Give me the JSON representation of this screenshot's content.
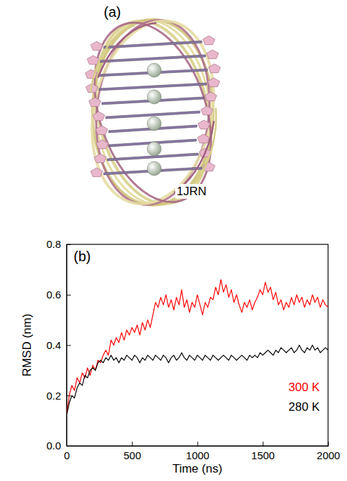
{
  "image_panel": {
    "panel_label": "(a)",
    "structure_label": "1JRN"
  },
  "chart_data": {
    "type": "line",
    "panel_label": "(b)",
    "x_label": "Time (ns)",
    "y_label": "RMSD (nm)",
    "xlim": [
      0,
      2000
    ],
    "ylim": [
      0,
      0.8
    ],
    "xticks": [
      0,
      500,
      1000,
      1500,
      2000
    ],
    "yticks": [
      {
        "value": 0,
        "label": "0.0"
      },
      {
        "value": 0.2,
        "label": "0.2"
      },
      {
        "value": 0.4,
        "label": "0.4"
      },
      {
        "value": 0.6,
        "label": "0.6"
      },
      {
        "value": 0.8,
        "label": "0.8"
      }
    ],
    "legend": "lower right",
    "x": [
      0,
      20,
      40,
      60,
      80,
      100,
      120,
      140,
      160,
      180,
      200,
      220,
      240,
      260,
      280,
      300,
      320,
      340,
      360,
      380,
      400,
      420,
      440,
      460,
      480,
      500,
      520,
      540,
      560,
      580,
      600,
      620,
      640,
      660,
      680,
      700,
      720,
      740,
      760,
      780,
      800,
      820,
      840,
      860,
      880,
      900,
      920,
      940,
      960,
      980,
      1000,
      1020,
      1040,
      1060,
      1080,
      1100,
      1120,
      1140,
      1160,
      1180,
      1200,
      1220,
      1240,
      1260,
      1280,
      1300,
      1320,
      1340,
      1360,
      1380,
      1400,
      1420,
      1440,
      1460,
      1480,
      1500,
      1520,
      1540,
      1560,
      1580,
      1600,
      1620,
      1640,
      1660,
      1680,
      1700,
      1720,
      1740,
      1760,
      1780,
      1800,
      1820,
      1840,
      1860,
      1880,
      1900,
      1920,
      1940,
      1960,
      1980,
      2000
    ],
    "series": [
      {
        "name": "300 K",
        "color": "#ff0000",
        "values": [
          0.12,
          0.2,
          0.24,
          0.22,
          0.27,
          0.25,
          0.29,
          0.27,
          0.31,
          0.28,
          0.32,
          0.3,
          0.34,
          0.33,
          0.36,
          0.38,
          0.36,
          0.42,
          0.4,
          0.43,
          0.41,
          0.45,
          0.42,
          0.46,
          0.44,
          0.47,
          0.45,
          0.48,
          0.44,
          0.49,
          0.46,
          0.5,
          0.47,
          0.52,
          0.57,
          0.55,
          0.59,
          0.56,
          0.6,
          0.55,
          0.58,
          0.54,
          0.59,
          0.56,
          0.62,
          0.55,
          0.58,
          0.53,
          0.57,
          0.55,
          0.6,
          0.56,
          0.52,
          0.57,
          0.55,
          0.59,
          0.58,
          0.63,
          0.6,
          0.66,
          0.61,
          0.64,
          0.59,
          0.62,
          0.57,
          0.6,
          0.56,
          0.53,
          0.57,
          0.55,
          0.58,
          0.54,
          0.57,
          0.59,
          0.62,
          0.6,
          0.65,
          0.61,
          0.63,
          0.58,
          0.61,
          0.56,
          0.58,
          0.54,
          0.57,
          0.55,
          0.59,
          0.56,
          0.6,
          0.57,
          0.59,
          0.55,
          0.58,
          0.56,
          0.6,
          0.57,
          0.59,
          0.55,
          0.58,
          0.56,
          0.55
        ]
      },
      {
        "name": "280 K",
        "color": "#000000",
        "values": [
          0.12,
          0.17,
          0.2,
          0.19,
          0.23,
          0.25,
          0.24,
          0.28,
          0.27,
          0.3,
          0.31,
          0.3,
          0.33,
          0.34,
          0.33,
          0.35,
          0.34,
          0.36,
          0.34,
          0.35,
          0.33,
          0.35,
          0.34,
          0.36,
          0.35,
          0.34,
          0.36,
          0.35,
          0.33,
          0.35,
          0.34,
          0.36,
          0.35,
          0.34,
          0.36,
          0.35,
          0.34,
          0.36,
          0.35,
          0.33,
          0.35,
          0.36,
          0.34,
          0.35,
          0.37,
          0.35,
          0.34,
          0.36,
          0.35,
          0.34,
          0.36,
          0.35,
          0.34,
          0.36,
          0.35,
          0.34,
          0.36,
          0.35,
          0.34,
          0.35,
          0.36,
          0.35,
          0.34,
          0.36,
          0.35,
          0.34,
          0.35,
          0.36,
          0.35,
          0.34,
          0.36,
          0.35,
          0.36,
          0.35,
          0.37,
          0.36,
          0.37,
          0.38,
          0.37,
          0.36,
          0.38,
          0.37,
          0.39,
          0.38,
          0.37,
          0.38,
          0.39,
          0.37,
          0.38,
          0.4,
          0.38,
          0.37,
          0.39,
          0.38,
          0.4,
          0.38,
          0.39,
          0.37,
          0.38,
          0.39,
          0.38
        ]
      }
    ]
  }
}
